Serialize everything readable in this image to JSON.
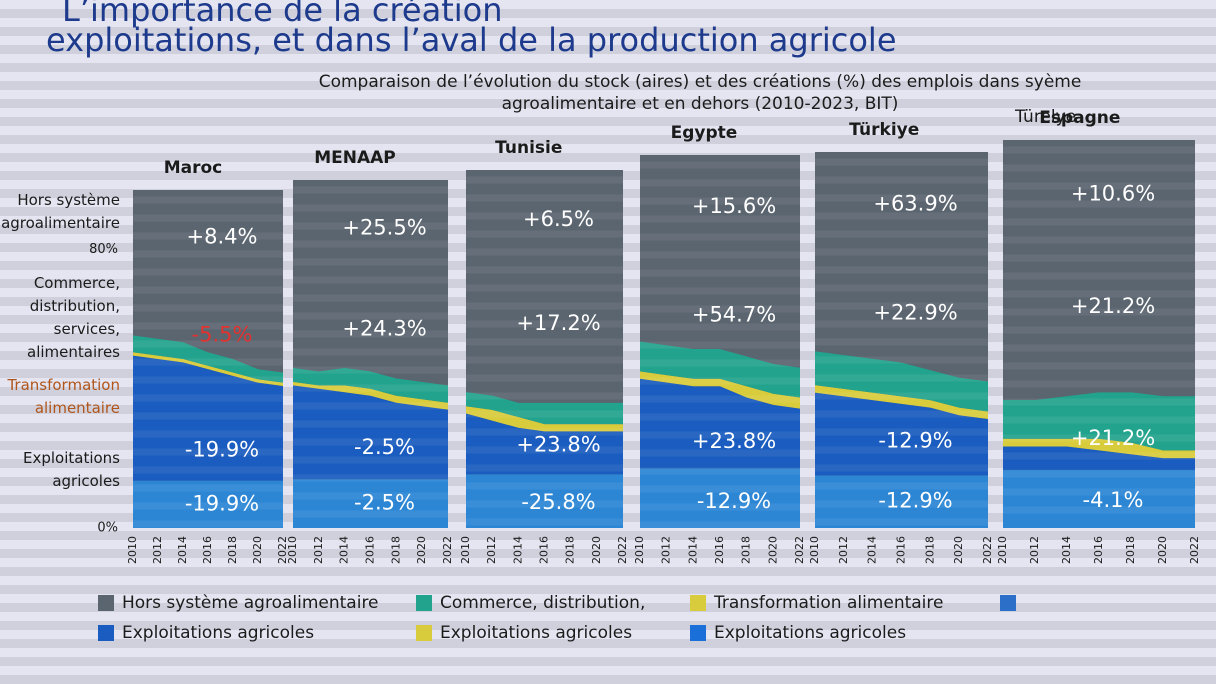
{
  "title": [
    "L’importance de la création",
    "exploitations, et dans l’aval de la production agricole"
  ],
  "subtitle": [
    "Comparaison de l’évolution du stock (aires) et des créations (%) des emplois dans syème",
    "agroalimentaire et en dehors (2010-2023, BIT)"
  ],
  "y_axis": {
    "ylim": [
      0,
      100
    ],
    "yticks": [
      {
        "value": 80,
        "label": "80%"
      },
      {
        "value": 0,
        "label": "0%"
      }
    ]
  },
  "layer_labels": [
    {
      "lines": [
        "Hors système",
        "agroalimentaire"
      ],
      "color": "#1b1b1b"
    },
    {
      "lines": [
        "Commerce,",
        "distribution,",
        "services,",
        "alimentaires"
      ],
      "color": "#1b1b1b"
    },
    {
      "lines": [
        "Transformation",
        "alimentaire"
      ],
      "color": "#b0561c"
    },
    {
      "lines": [
        "Exploitations",
        "agricoles"
      ],
      "color": "#1b1b1b"
    }
  ],
  "extra_label": "Türelye",
  "chart_data": [
    {
      "type": "area",
      "title": "Maroc",
      "x": [
        2010,
        2012,
        2014,
        2016,
        2018,
        2020,
        2022
      ],
      "xlim": [
        2010,
        2022
      ],
      "xticks": [
        2010,
        2012,
        2014,
        2016,
        2018,
        2020,
        2022
      ],
      "ylim": [
        0,
        100
      ],
      "series": [
        {
          "color": "#2c86d4",
          "values": [
            14,
            14,
            14,
            14,
            14,
            14,
            14
          ]
        },
        {
          "color": "#1a5cbf",
          "values": [
            37,
            36,
            35,
            33,
            31,
            29,
            28
          ]
        },
        {
          "color": "#d9cc3c",
          "values": [
            1,
            1,
            1,
            1,
            1,
            1,
            1
          ]
        },
        {
          "color": "#22a38d",
          "values": [
            5,
            5,
            5,
            4,
            4,
            3,
            3
          ]
        },
        {
          "color": "#5b656f",
          "values": [
            43,
            44,
            45,
            48,
            50,
            53,
            54
          ]
        }
      ],
      "labels": [
        "+8.4%",
        {
          "text": "-5.5%",
          "color": "#e2322f"
        },
        "-19.9%",
        "-19.9%"
      ]
    },
    {
      "type": "area",
      "title": "MENAAP",
      "x": [
        2010,
        2012,
        2014,
        2016,
        2018,
        2020,
        2022
      ],
      "xlim": [
        2010,
        2022
      ],
      "xticks": [
        2010,
        2012,
        2014,
        2016,
        2018,
        2020,
        2022
      ],
      "ylim": [
        0,
        100
      ],
      "series": [
        {
          "color": "#2c86d4",
          "values": [
            14,
            14,
            14,
            14,
            14,
            14,
            14
          ]
        },
        {
          "color": "#1a5cbf",
          "values": [
            27,
            26,
            25,
            24,
            22,
            21,
            20
          ]
        },
        {
          "color": "#d9cc3c",
          "values": [
            1,
            1,
            2,
            2,
            2,
            2,
            2
          ]
        },
        {
          "color": "#22a38d",
          "values": [
            4,
            4,
            5,
            5,
            5,
            5,
            5
          ]
        },
        {
          "color": "#5b656f",
          "values": [
            54,
            55,
            54,
            55,
            57,
            58,
            59
          ]
        }
      ],
      "labels": [
        "+25.5%",
        "+24.3%",
        "-2.5%",
        "-2.5%"
      ]
    },
    {
      "type": "area",
      "title": "Tunisie",
      "x": [
        2010,
        2012,
        2014,
        2016,
        2018,
        2020,
        2022
      ],
      "xlim": [
        2010,
        2022
      ],
      "xticks": [
        2010,
        2012,
        2014,
        2016,
        2018,
        2020,
        2022
      ],
      "ylim": [
        0,
        100
      ],
      "series": [
        {
          "color": "#2c86d4",
          "values": [
            15,
            15,
            15,
            15,
            15,
            15,
            15
          ]
        },
        {
          "color": "#1a5cbf",
          "values": [
            17,
            15,
            13,
            12,
            12,
            12,
            12
          ]
        },
        {
          "color": "#d9cc3c",
          "values": [
            2,
            3,
            3,
            2,
            2,
            2,
            2
          ]
        },
        {
          "color": "#22a38d",
          "values": [
            4,
            4,
            4,
            6,
            6,
            6,
            6
          ]
        },
        {
          "color": "#5b656f",
          "values": [
            62,
            63,
            65,
            65,
            65,
            65,
            65
          ]
        }
      ],
      "labels": [
        "+6.5%",
        "+17.2%",
        "+23.8%",
        "-25.8%"
      ]
    },
    {
      "type": "area",
      "title": "Egypte",
      "x": [
        2010,
        2012,
        2014,
        2016,
        2018,
        2020,
        2022
      ],
      "xlim": [
        2010,
        2022
      ],
      "xticks": [
        2010,
        2012,
        2014,
        2016,
        2018,
        2020,
        2022
      ],
      "ylim": [
        0,
        100
      ],
      "series": [
        {
          "color": "#2c86d4",
          "values": [
            16,
            16,
            16,
            16,
            16,
            16,
            16
          ]
        },
        {
          "color": "#1a5cbf",
          "values": [
            24,
            23,
            22,
            22,
            19,
            17,
            16
          ]
        },
        {
          "color": "#d9cc3c",
          "values": [
            2,
            2,
            2,
            2,
            3,
            3,
            3
          ]
        },
        {
          "color": "#22a38d",
          "values": [
            8,
            8,
            8,
            8,
            8,
            8,
            8
          ]
        },
        {
          "color": "#5b656f",
          "values": [
            50,
            51,
            52,
            52,
            54,
            56,
            57
          ]
        }
      ],
      "labels": [
        "+15.6%",
        "+54.7%",
        "+23.8%",
        "-12.9%"
      ]
    },
    {
      "type": "area",
      "title": "Türkiye",
      "x": [
        2010,
        2012,
        2014,
        2016,
        2018,
        2020,
        2022
      ],
      "xlim": [
        2010,
        2022
      ],
      "xticks": [
        2010,
        2012,
        2014,
        2016,
        2018,
        2020,
        2022
      ],
      "ylim": [
        0,
        100
      ],
      "series": [
        {
          "color": "#2c86d4",
          "values": [
            14,
            14,
            14,
            14,
            14,
            14,
            14
          ]
        },
        {
          "color": "#1a5cbf",
          "values": [
            22,
            21,
            20,
            19,
            18,
            16,
            15
          ]
        },
        {
          "color": "#d9cc3c",
          "values": [
            2,
            2,
            2,
            2,
            2,
            2,
            2
          ]
        },
        {
          "color": "#22a38d",
          "values": [
            9,
            9,
            9,
            9,
            8,
            8,
            8
          ]
        },
        {
          "color": "#5b656f",
          "values": [
            53,
            54,
            55,
            56,
            58,
            60,
            61
          ]
        }
      ],
      "labels": [
        "+63.9%",
        "+22.9%",
        "-12.9%",
        "-12.9%"
      ]
    },
    {
      "type": "area",
      "title": "Espagne",
      "x": [
        2010,
        2012,
        2014,
        2016,
        2018,
        2020,
        2022
      ],
      "xlim": [
        2010,
        2022
      ],
      "xticks": [
        2010,
        2012,
        2014,
        2016,
        2018,
        2020,
        2022
      ],
      "ylim": [
        0,
        100
      ],
      "series": [
        {
          "color": "#2c86d4",
          "values": [
            15,
            15,
            15,
            15,
            15,
            15,
            15
          ]
        },
        {
          "color": "#1a5cbf",
          "values": [
            6,
            6,
            6,
            5,
            4,
            3,
            3
          ]
        },
        {
          "color": "#d9cc3c",
          "values": [
            2,
            2,
            2,
            3,
            3,
            2,
            2
          ]
        },
        {
          "color": "#22a38d",
          "values": [
            10,
            10,
            11,
            12,
            13,
            14,
            14
          ]
        },
        {
          "color": "#5b656f",
          "values": [
            67,
            67,
            66,
            65,
            65,
            66,
            66
          ]
        }
      ],
      "labels": [
        "+10.6%",
        "+21.2%",
        "+21.2%",
        "-4.1%"
      ]
    }
  ],
  "legend": [
    {
      "label": "Hors système agroalimentaire",
      "color": "#5b656f"
    },
    {
      "label": "Commerce, distribution,",
      "color": "#22a38d"
    },
    {
      "label": "Transformation alimentaire",
      "color": "#d9cc3c"
    },
    {
      "color": "#2c6fc8"
    },
    {
      "label": "Exploitations agricoles",
      "color": "#1a5cbf"
    },
    {
      "label": "Exploitations agricoles",
      "color": "#d9cc3c"
    },
    {
      "label": "Exploitations agricoles",
      "color": "#1a6fd8"
    }
  ]
}
